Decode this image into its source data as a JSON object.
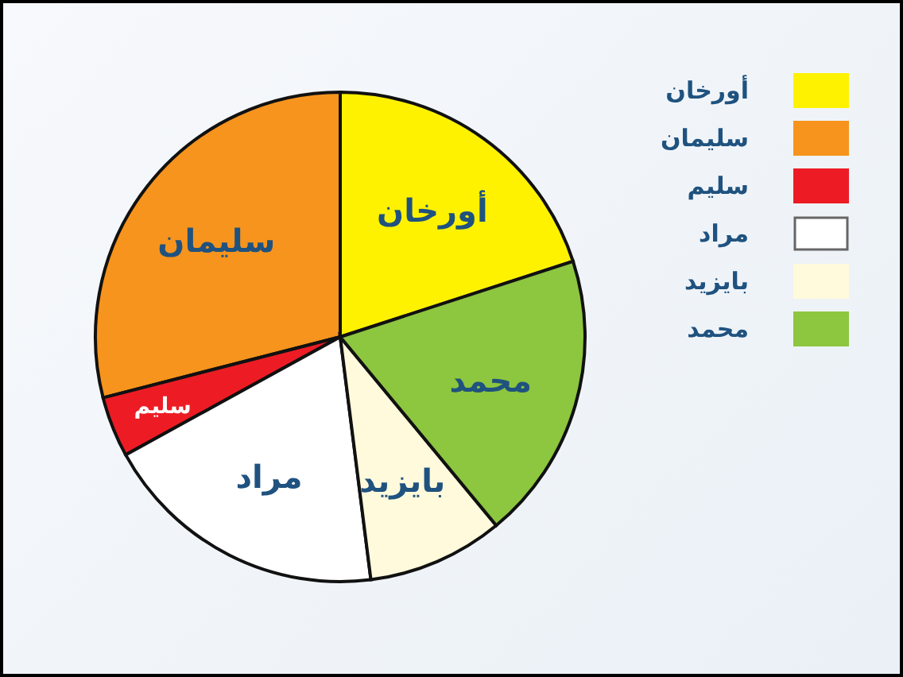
{
  "chart_data": {
    "type": "pie",
    "categories": [
      "أورخان",
      "سليمان",
      "سليم",
      "مراد",
      "بايزيد",
      "محمد"
    ],
    "values": [
      20,
      29,
      4,
      19,
      9,
      19
    ],
    "colors": [
      "#fff200",
      "#f7941d",
      "#ed1c24",
      "#ffffff",
      "#fffadc",
      "#8dc63f"
    ],
    "legend": "top right"
  }
}
